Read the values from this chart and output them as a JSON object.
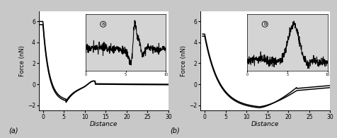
{
  "fig_width": 4.76,
  "fig_height": 1.95,
  "dpi": 100,
  "bg_color": "#c8c8c8",
  "panel_bg": "#ffffff",
  "inset_bg": "#d4d4d4",
  "label_a": "(a)",
  "label_b": "(b)",
  "xlabel": "Distance",
  "ylabel": "Force (nN)",
  "xlim_a": [
    -1,
    30
  ],
  "xlim_b": [
    -1,
    30
  ],
  "ylim_a": [
    -2.5,
    7.0
  ],
  "ylim_b": [
    -2.5,
    7.0
  ],
  "xticks": [
    0,
    5,
    10,
    15,
    20,
    25,
    30
  ],
  "yticks_a": [
    -2,
    0,
    2,
    4,
    6
  ],
  "yticks_b": [
    -2,
    0,
    2,
    4,
    6
  ]
}
